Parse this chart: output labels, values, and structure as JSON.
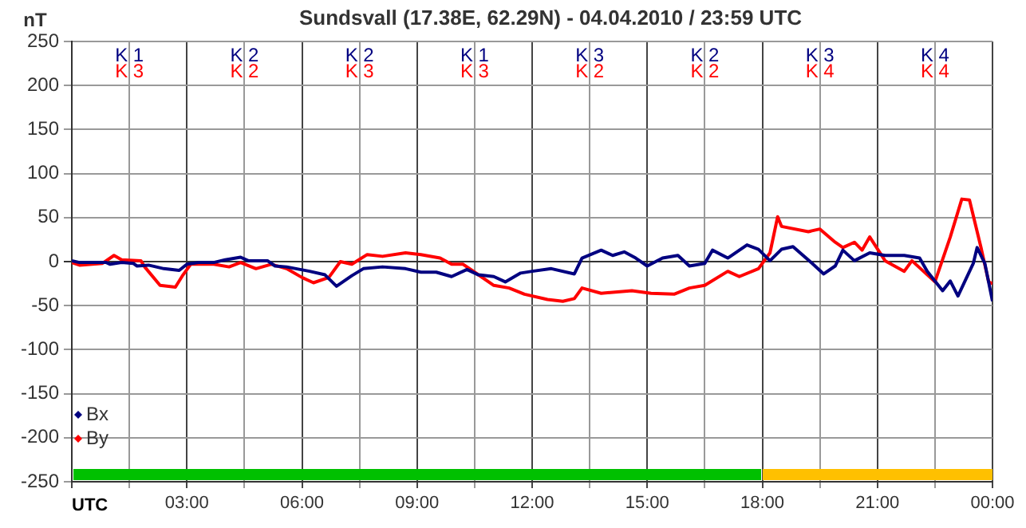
{
  "chart_data": {
    "type": "line",
    "title": "Sundsvall (17.38E, 62.29N) - 04.04.2010 / 23:59 UTC",
    "xlabel": "UTC",
    "ylabel": "nT",
    "xlim": [
      0,
      24
    ],
    "xticks": [
      {
        "value": 0,
        "label": null
      },
      {
        "value": 1.5,
        "label": null
      },
      {
        "value": 3,
        "label": "03:00"
      },
      {
        "value": 4.5,
        "label": null
      },
      {
        "value": 6,
        "label": "06:00"
      },
      {
        "value": 7.5,
        "label": null
      },
      {
        "value": 9,
        "label": "09:00"
      },
      {
        "value": 10.5,
        "label": null
      },
      {
        "value": 12,
        "label": "12:00"
      },
      {
        "value": 13.5,
        "label": null
      },
      {
        "value": 15,
        "label": "15:00"
      },
      {
        "value": 16.5,
        "label": null
      },
      {
        "value": 18,
        "label": "18:00"
      },
      {
        "value": 19.5,
        "label": null
      },
      {
        "value": 21,
        "label": "21:00"
      },
      {
        "value": 22.5,
        "label": null
      },
      {
        "value": 24,
        "label": "00:00"
      }
    ],
    "ylim": [
      -250,
      250
    ],
    "yticks": [
      -250,
      -200,
      -150,
      -100,
      -50,
      0,
      50,
      100,
      150,
      200,
      250
    ],
    "grid": true,
    "legend": "bottom left",
    "line_style": "solid",
    "marker": "none",
    "series": [
      {
        "name": "Bx",
        "color": "#000080",
        "x": [
          0,
          0.2,
          0.9,
          1.0,
          1.3,
          1.6,
          1.7,
          2.0,
          2.4,
          2.8,
          3.0,
          3.3,
          3.7,
          4.0,
          4.4,
          4.6,
          5.1,
          5.3,
          5.6,
          6.2,
          6.6,
          6.9,
          7.3,
          7.6,
          8.1,
          8.7,
          9.1,
          9.5,
          9.9,
          10.3,
          10.6,
          11.0,
          11.3,
          11.7,
          12.0,
          12.5,
          13.1,
          13.3,
          13.8,
          14.1,
          14.4,
          14.7,
          15.0,
          15.4,
          15.8,
          16.1,
          16.5,
          16.7,
          17.1,
          17.6,
          17.9,
          18.2,
          18.5,
          18.8,
          19.3,
          19.6,
          19.9,
          20.1,
          20.4,
          20.8,
          21.2,
          21.7,
          22.1,
          22.3,
          22.7,
          22.9,
          23.1,
          23.5,
          23.6,
          23.8,
          24.0
        ],
        "values": [
          1,
          -1,
          -1,
          -3,
          -1,
          -2,
          -5,
          -4,
          -8,
          -10,
          -3,
          -1,
          -1,
          2,
          5,
          1,
          1,
          -5,
          -6,
          -11,
          -15,
          -28,
          -16,
          -8,
          -6,
          -8,
          -12,
          -12,
          -17,
          -9,
          -15,
          -17,
          -23,
          -13,
          -11,
          -8,
          -14,
          4,
          13,
          7,
          11,
          4,
          -5,
          4,
          7,
          -5,
          -2,
          13,
          4,
          19,
          14,
          1,
          14,
          17,
          -2,
          -14,
          -5,
          13,
          1,
          10,
          7,
          7,
          4,
          -11,
          -33,
          -22,
          -39,
          -2,
          16,
          -2,
          -45
        ]
      },
      {
        "name": "By",
        "color": "#ff0000",
        "x": [
          0,
          0.2,
          0.8,
          1.1,
          1.3,
          1.8,
          1.9,
          2.3,
          2.7,
          2.9,
          3.1,
          3.7,
          4.1,
          4.4,
          4.8,
          5.2,
          5.6,
          6.0,
          6.3,
          6.7,
          7.0,
          7.3,
          7.7,
          8.1,
          8.7,
          9.1,
          9.6,
          9.9,
          10.2,
          10.5,
          11.0,
          11.4,
          11.8,
          12.4,
          12.8,
          13.1,
          13.3,
          13.8,
          14.6,
          15.1,
          15.7,
          16.1,
          16.5,
          17.1,
          17.4,
          17.9,
          18.2,
          18.4,
          18.5,
          19.2,
          19.5,
          19.9,
          20.1,
          20.4,
          20.6,
          20.8,
          21.2,
          21.7,
          21.9,
          22.5,
          22.9,
          23.2,
          23.4,
          23.7,
          23.9,
          24.0
        ],
        "values": [
          -1,
          -4,
          -2,
          7,
          2,
          1,
          -6,
          -27,
          -29,
          -15,
          -3,
          -3,
          -6,
          -1,
          -8,
          -3,
          -8,
          -18,
          -24,
          -18,
          0,
          -3,
          8,
          6,
          10,
          8,
          4,
          -3,
          -3,
          -12,
          -27,
          -30,
          -37,
          -43,
          -45,
          -42,
          -30,
          -36,
          -33,
          -36,
          -37,
          -30,
          -27,
          -11,
          -17,
          -8,
          10,
          51,
          40,
          34,
          37,
          22,
          16,
          22,
          13,
          28,
          1,
          -11,
          1,
          -23,
          28,
          71,
          70,
          16,
          -23,
          -25
        ]
      }
    ],
    "annotations": [
      "K 1",
      "K 3",
      "K 2",
      "K 2",
      "K 2",
      "K 3",
      "K 1",
      "K 3",
      "K 3",
      "K 2",
      "K 2",
      "K 2",
      "K 3",
      "K 4",
      "K 4",
      "K 4"
    ]
  }
}
